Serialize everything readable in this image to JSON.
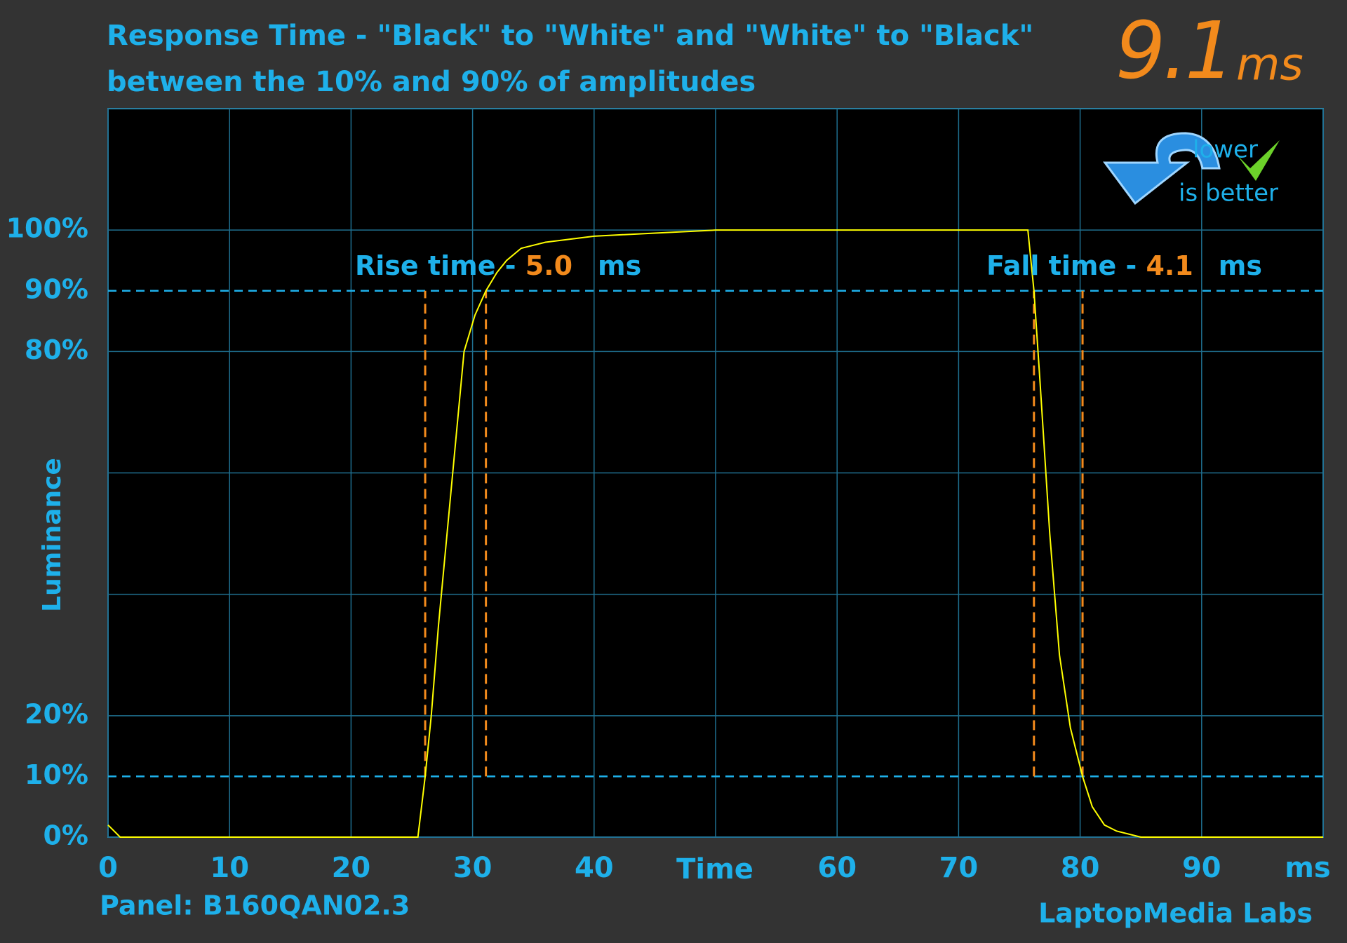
{
  "chart_data": {
    "type": "line",
    "title": "Response Time - \"Black\" to \"White\" and \"White\" to \"Black\"",
    "subtitle": "between the 10% and 90% of amplitudes",
    "headline_value": "9.1",
    "headline_unit": "ms",
    "badge": [
      "lower",
      "is better"
    ],
    "x_label": "Time",
    "x_unit": "ms",
    "y_label": "Luminance",
    "footer_left": "Panel: B160QAN02.3",
    "footer_right": "LaptopMedia Labs",
    "xlim": [
      0,
      100
    ],
    "xticks": [
      0,
      10,
      20,
      30,
      40,
      60,
      70,
      80,
      90
    ],
    "xgrid": [
      0,
      10,
      20,
      30,
      40,
      50,
      60,
      70,
      80,
      90,
      100
    ],
    "ylim": [
      0,
      120
    ],
    "yticks": [
      {
        "value": 0,
        "label": "0%"
      },
      {
        "value": 10,
        "label": "10%"
      },
      {
        "value": 20,
        "label": "20%"
      },
      {
        "value": 80,
        "label": "80%"
      },
      {
        "value": 90,
        "label": "90%"
      },
      {
        "value": 100,
        "label": "100%"
      }
    ],
    "ygrid": [
      0,
      20,
      40,
      60,
      80,
      100
    ],
    "threshold_lines": [
      10,
      90
    ],
    "annotations": [
      {
        "text": "Rise time - ",
        "value": "5.0",
        "unit": "ms",
        "markers_x": [
          26.1,
          31.1
        ]
      },
      {
        "text": "Fall time - ",
        "value": "4.1",
        "unit": "ms",
        "markers_x": [
          76.2,
          80.2
        ]
      }
    ],
    "series": [
      {
        "color": "#ffff00",
        "x": [
          0,
          0.5,
          1,
          25.5,
          26.1,
          26.6,
          27.2,
          27.9,
          28.6,
          29.3,
          30.2,
          31.1,
          32,
          32.8,
          34,
          36,
          40,
          45,
          50,
          75.7,
          76.2,
          76.7,
          77.5,
          78.3,
          79.2,
          80.2,
          81,
          82,
          83,
          85,
          100
        ],
        "values": [
          2,
          1,
          0,
          0,
          10,
          20,
          35,
          50,
          65,
          80,
          86,
          90,
          93,
          95,
          97,
          98,
          99,
          99.5,
          100,
          100,
          90,
          75,
          50,
          30,
          18,
          10,
          5,
          2,
          1,
          0,
          0
        ]
      }
    ]
  }
}
